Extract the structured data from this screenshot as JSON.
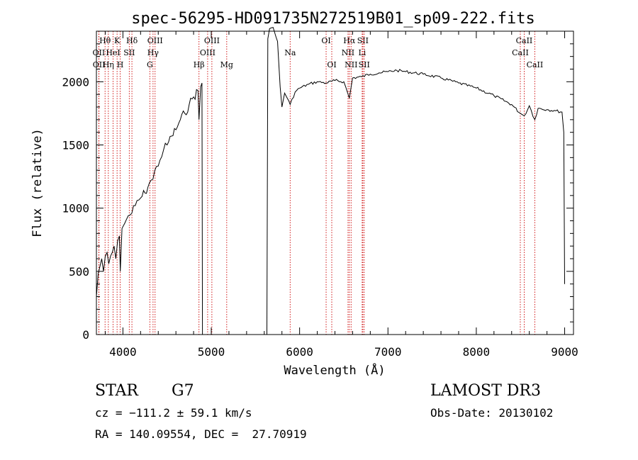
{
  "chart_data": {
    "type": "line",
    "title": "spec-56295-HD091735N272519B01_sp09-222.fits",
    "xlabel": "Wavelength (Å)",
    "ylabel": "Flux (relative)",
    "xlim": [
      3700,
      9100
    ],
    "ylim": [
      0,
      2400
    ],
    "xticks": [
      4000,
      5000,
      6000,
      7000,
      8000,
      9000
    ],
    "yticks": [
      0,
      500,
      1000,
      1500,
      2000
    ],
    "grid": false,
    "line_color": "#000000",
    "marker_color": "#cc0000",
    "series": [
      {
        "x": [
          3700,
          3720,
          3740,
          3760,
          3780,
          3800,
          3820,
          3840,
          3860,
          3880,
          3900,
          3920,
          3940,
          3960,
          3970,
          3990,
          4020,
          4060,
          4101,
          4140,
          4200,
          4250,
          4300,
          4340,
          4380,
          4420,
          4460,
          4500,
          4550,
          4600,
          4650,
          4700,
          4750,
          4800,
          4850,
          4861,
          4880,
          4895,
          4900,
          5000,
          5200,
          5400,
          5600,
          5630,
          5640,
          5660,
          5700,
          5750,
          5780,
          5800,
          5830,
          5860,
          5893,
          5950,
          6000,
          6100,
          6200,
          6300,
          6400,
          6500,
          6563,
          6600,
          6700,
          6800,
          6900,
          7000,
          7100,
          7200,
          7400,
          7600,
          7800,
          8000,
          8200,
          8400,
          8498,
          8542,
          8600,
          8662,
          8700,
          8800,
          8900,
          8970,
          8990,
          9000
        ],
        "y": [
          300,
          480,
          540,
          600,
          500,
          620,
          650,
          560,
          620,
          650,
          700,
          600,
          740,
          780,
          500,
          840,
          880,
          940,
          960,
          1020,
          1080,
          1120,
          1200,
          1230,
          1330,
          1380,
          1460,
          1500,
          1570,
          1620,
          1700,
          1750,
          1820,
          1880,
          1930,
          1700,
          1960,
          1990,
          0,
          0,
          0,
          0,
          0,
          0,
          2340,
          2420,
          2430,
          2320,
          1960,
          1800,
          1910,
          1870,
          1820,
          1920,
          1950,
          1980,
          2000,
          1990,
          2010,
          2000,
          1870,
          2030,
          2040,
          2060,
          2070,
          2080,
          2090,
          2080,
          2060,
          2030,
          1990,
          1950,
          1890,
          1820,
          1750,
          1730,
          1810,
          1700,
          1790,
          1780,
          1770,
          1760,
          1600,
          400
        ]
      }
    ],
    "line_markers": [
      {
        "label": "Hθ",
        "x": 3798,
        "row": 1
      },
      {
        "label": "OII",
        "x": 3727,
        "row": 2
      },
      {
        "label": "OII",
        "x": 3729,
        "row": 3
      },
      {
        "label": "K",
        "x": 3934,
        "row": 1
      },
      {
        "label": "HeI",
        "x": 3889,
        "row": 2
      },
      {
        "label": "Hη",
        "x": 3835,
        "row": 3
      },
      {
        "label": "H",
        "x": 3969,
        "row": 3
      },
      {
        "label": "SII",
        "x": 4072,
        "row": 2
      },
      {
        "label": "Hδ",
        "x": 4102,
        "row": 1
      },
      {
        "label": "OIII",
        "x": 4364,
        "row": 1
      },
      {
        "label": "Hγ",
        "x": 4341,
        "row": 2
      },
      {
        "label": "G",
        "x": 4305,
        "row": 3
      },
      {
        "label": "Hβ",
        "x": 4861,
        "row": 3
      },
      {
        "label": "OIII",
        "x": 4959,
        "row": 2
      },
      {
        "label": "OIII",
        "x": 5007,
        "row": 1
      },
      {
        "label": "Mg",
        "x": 5175,
        "row": 3
      },
      {
        "label": "Na",
        "x": 5893,
        "row": 2
      },
      {
        "label": "OI",
        "x": 6300,
        "row": 1
      },
      {
        "label": "OI",
        "x": 6364,
        "row": 3
      },
      {
        "label": "Hα",
        "x": 6563,
        "row": 1
      },
      {
        "label": "NII",
        "x": 6548,
        "row": 2
      },
      {
        "label": "NII",
        "x": 6583,
        "row": 3
      },
      {
        "label": "SII",
        "x": 6716,
        "row": 1
      },
      {
        "label": "Li",
        "x": 6708,
        "row": 2
      },
      {
        "label": "SII",
        "x": 6731,
        "row": 3
      },
      {
        "label": "CaII",
        "x": 8542,
        "row": 1
      },
      {
        "label": "CaII",
        "x": 8498,
        "row": 2
      },
      {
        "label": "CaII",
        "x": 8662,
        "row": 3
      }
    ]
  },
  "info": {
    "object_class": "STAR",
    "subclass": "G7",
    "survey": "LAMOST DR3",
    "redshift": "cz = −111.2 ± 59.1 km/s",
    "obs_date": "Obs-Date: 20130102",
    "coords": "RA = 140.09554, DEC =  27.70919"
  }
}
